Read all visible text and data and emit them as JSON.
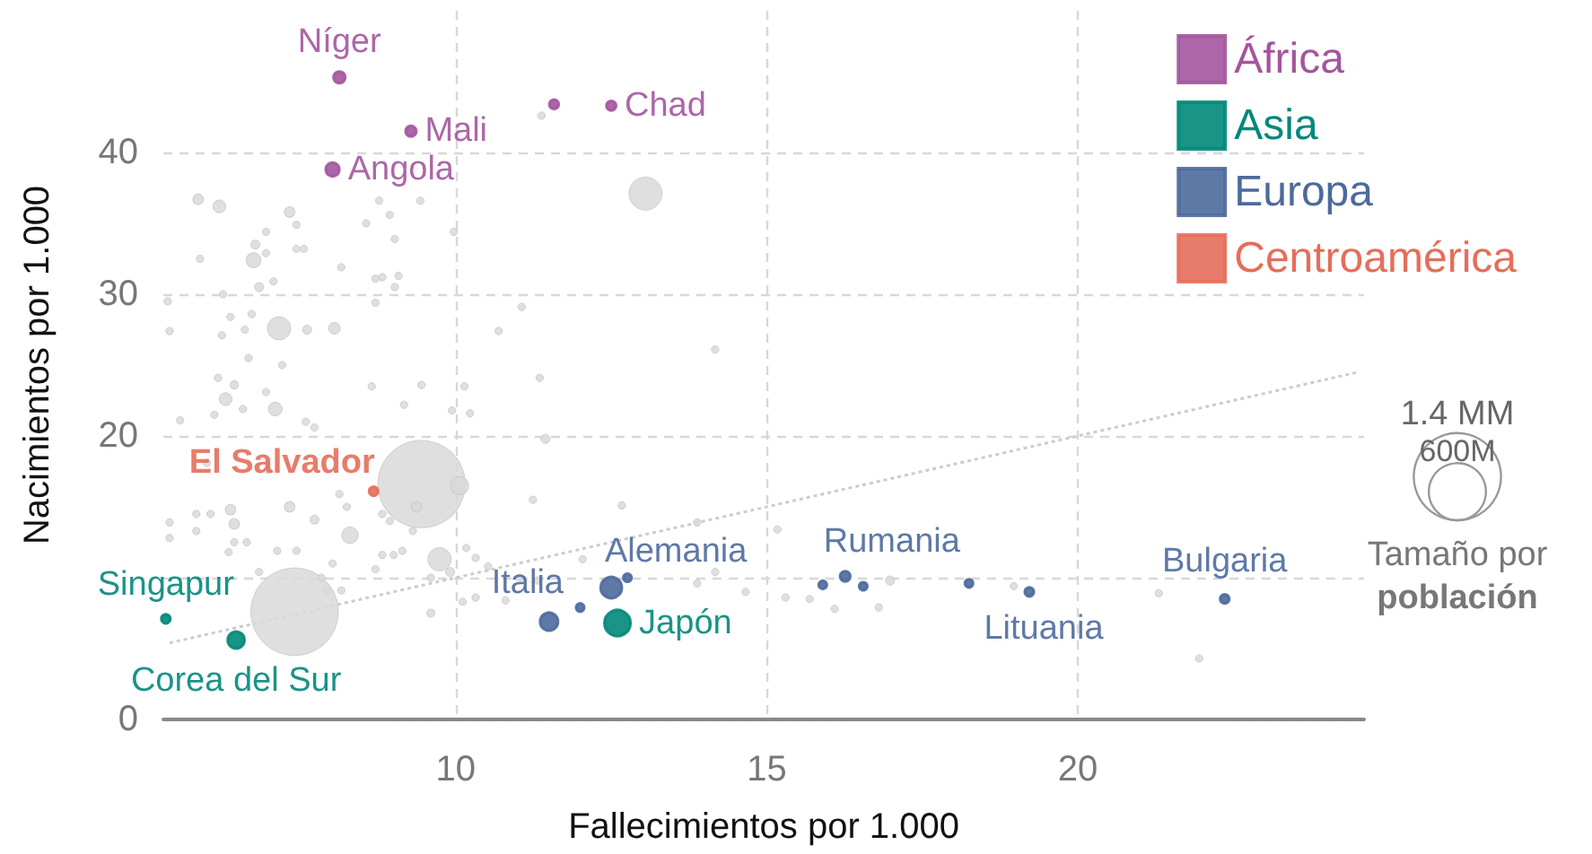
{
  "chart_data": {
    "type": "bubble",
    "xlabel": "Fallecimientos por 1.000",
    "ylabel": "Nacimientos por 1.000",
    "xlim": [
      5.3,
      24.6
    ],
    "ylim": [
      0,
      50
    ],
    "xticks": [
      10,
      15,
      20
    ],
    "yticks": [
      0,
      {
        "value": 10,
        "label": null
      },
      20,
      30,
      40
    ],
    "grid": true,
    "legend": "top right",
    "marker": "circle",
    "size_legend": [
      {
        "value": 1400,
        "label": "1.4 MM"
      },
      {
        "value": 600,
        "label": "600M"
      }
    ],
    "annotations": [
      "Tamaño por",
      "población"
    ],
    "series": [
      {
        "color": "#d9d9d9",
        "x": [
          5.86,
          6.2,
          7.33,
          8.77,
          9.43,
          8.94,
          8.56,
          7.44,
          6.95,
          6.78,
          9.02,
          9.97,
          5.89,
          6.75,
          6.95,
          7.44,
          7.56,
          8.16,
          8.71,
          8.82,
          9.08,
          9.02,
          8.71,
          6.84,
          7.07,
          6.26,
          5.37,
          6.38,
          6.72,
          7.16,
          7.61,
          8.05,
          5.4,
          6.24,
          6.61,
          6.67,
          7.21,
          10.69,
          11.06,
          11.35,
          14.17,
          11.38,
          13.05,
          6.18,
          6.44,
          6.3,
          6.95,
          7.1,
          8.65,
          9.45,
          9.17,
          5.57,
          6.12,
          6.58,
          9.94,
          10.23,
          10.14,
          11.44,
          9.45,
          10.06,
          9.37,
          8.13,
          7.33,
          6.38,
          6.44,
          7.73,
          8.3,
          8.94,
          9.74,
          9.91,
          9.6,
          7.93,
          7.41,
          9.6,
          12.67,
          11.24,
          13.88,
          15.17,
          14.17,
          13.88,
          14.66,
          15.3,
          10.17,
          10.32,
          10.52,
          10.11,
          10.32,
          11.03,
          11.32,
          10.8,
          12.04,
          5.4,
          5.4,
          5.83,
          6.06,
          5.83,
          6.44,
          6.64,
          7.13,
          7.44,
          6.35,
          6.84,
          7.84,
          8.02,
          8.71,
          8.82,
          9.0,
          9.14,
          9.31,
          8.82,
          8.25,
          7.73,
          7.59,
          6.0,
          6.98,
          8.16,
          16.98,
          15.69,
          16.09,
          16.8,
          18.97,
          21.3,
          21.95
        ],
        "values": [
          36.7,
          36.2,
          35.8,
          36.6,
          36.6,
          35.6,
          35.0,
          34.9,
          34.4,
          33.5,
          33.9,
          34.4,
          32.5,
          32.4,
          32.9,
          33.2,
          33.2,
          31.9,
          31.1,
          31.2,
          31.3,
          30.5,
          29.4,
          30.5,
          30.9,
          30.0,
          29.5,
          28.4,
          28.6,
          27.6,
          27.5,
          27.6,
          27.4,
          27.1,
          27.5,
          25.5,
          25.0,
          27.4,
          29.1,
          24.1,
          26.1,
          42.6,
          37.1,
          24.1,
          23.6,
          22.6,
          23.1,
          21.9,
          23.5,
          23.6,
          22.2,
          21.1,
          21.5,
          21.9,
          21.8,
          21.6,
          23.5,
          19.8,
          16.6,
          16.5,
          15.0,
          15.9,
          15.0,
          14.8,
          13.8,
          14.1,
          13.0,
          14.0,
          11.3,
          10.4,
          10.0,
          9.1,
          7.6,
          7.5,
          15.1,
          15.5,
          13.9,
          13.4,
          10.4,
          9.6,
          9.0,
          8.6,
          12.1,
          11.4,
          10.8,
          8.3,
          8.6,
          10.0,
          9.8,
          8.4,
          11.3,
          13.9,
          12.8,
          14.5,
          14.5,
          13.3,
          12.5,
          12.5,
          11.9,
          11.9,
          11.8,
          10.4,
          10.0,
          11.0,
          10.6,
          11.6,
          11.6,
          11.9,
          13.3,
          14.5,
          15.0,
          20.6,
          21.0,
          18.1,
          17.6,
          9.1,
          9.8,
          8.5,
          7.8,
          7.9,
          9.4,
          8.9,
          4.3
        ],
        "sizes": [
          20,
          30,
          20,
          10,
          10,
          10,
          10,
          10,
          10,
          15,
          10,
          10,
          10,
          40,
          10,
          10,
          10,
          10,
          10,
          10,
          10,
          10,
          10,
          15,
          10,
          10,
          10,
          10,
          10,
          100,
          15,
          25,
          10,
          10,
          10,
          10,
          10,
          10,
          10,
          10,
          10,
          10,
          200,
          10,
          12,
          30,
          10,
          35,
          10,
          10,
          10,
          10,
          10,
          10,
          10,
          10,
          10,
          15,
          1400,
          60,
          20,
          10,
          20,
          20,
          20,
          15,
          50,
          10,
          100,
          15,
          10,
          15,
          1410,
          12,
          10,
          10,
          10,
          10,
          10,
          10,
          10,
          10,
          10,
          10,
          10,
          10,
          10,
          10,
          10,
          10,
          10,
          10,
          10,
          10,
          10,
          10,
          10,
          10,
          10,
          10,
          10,
          10,
          10,
          10,
          10,
          10,
          10,
          10,
          10,
          10,
          10,
          10,
          10,
          10,
          10,
          10,
          15,
          10,
          10,
          10,
          10,
          10,
          10
        ]
      },
      {
        "name": "África",
        "color": "#a4559e",
        "x": [
          8.13,
          9.28,
          8.02,
          12.5,
          11.58
        ],
        "values": [
          45.3,
          41.5,
          38.8,
          43.3,
          43.4
        ],
        "sizes": [
          25,
          21,
          34,
          17,
          16
        ],
        "value_labels": [
          "Níger",
          "Mali",
          "Angola",
          "Chad",
          null
        ]
      },
      {
        "name": "Asia",
        "color": "#00887a",
        "x": [
          5.34,
          6.47,
          12.6
        ],
        "values": [
          7.1,
          5.6,
          6.8
        ],
        "sizes": [
          15,
          52,
          125
        ],
        "value_labels": [
          "Singapur",
          "Corea del Sur",
          "Japón"
        ]
      },
      {
        "name": "Europa",
        "color": "#4c6a9c",
        "x": [
          11.5,
          12.5,
          16.26,
          19.22,
          22.36,
          12.0,
          12.76,
          15.9,
          16.55,
          18.25
        ],
        "values": [
          6.9,
          9.3,
          10.1,
          9.0,
          8.5,
          7.9,
          10.0,
          9.5,
          9.4,
          9.6
        ],
        "sizes": [
          59,
          83,
          19,
          15,
          15,
          12,
          12,
          12,
          12,
          12
        ],
        "value_labels": [
          "Italia",
          "Alemania",
          "Rumania",
          "Lituania",
          "Bulgaria",
          null,
          null,
          null,
          null,
          null
        ]
      },
      {
        "name": "Centroamérica",
        "color": "#e56e5a",
        "x": [
          8.68
        ],
        "values": [
          16.1
        ],
        "sizes": [
          15
        ],
        "value_labels": [
          "El Salvador"
        ]
      },
      {
        "type": "line",
        "color": "#cccccc",
        "line_style": "dotted",
        "marker": "none",
        "x": [
          5.4,
          24.5
        ],
        "values": [
          5.4,
          24.5
        ]
      }
    ]
  }
}
